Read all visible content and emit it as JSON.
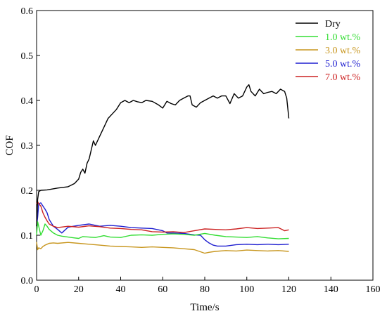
{
  "chart_data": {
    "type": "line",
    "title": "",
    "xlabel": "Time/s",
    "ylabel": "COF",
    "xlim": [
      0,
      160
    ],
    "ylim": [
      0,
      0.6
    ],
    "xticks": [
      0,
      20,
      40,
      60,
      80,
      100,
      120,
      140,
      160
    ],
    "yticks": [
      0.0,
      0.1,
      0.2,
      0.3,
      0.4,
      0.5,
      0.6
    ],
    "xtick_labels": [
      "0",
      "20",
      "40",
      "60",
      "80",
      "100",
      "120",
      "140",
      "160"
    ],
    "ytick_labels": [
      "0.0",
      "0.1",
      "0.2",
      "0.3",
      "0.4",
      "0.5",
      "0.6"
    ],
    "grid": false,
    "legend_position": "top-right",
    "series": [
      {
        "name": "Dry",
        "color": "#000000",
        "x": [
          0,
          0.5,
          1,
          2,
          5,
          10,
          15,
          18,
          20,
          21,
          22,
          23,
          24,
          25,
          26,
          27,
          28,
          30,
          32,
          34,
          36,
          38,
          40,
          42,
          44,
          46,
          48,
          50,
          52,
          55,
          58,
          60,
          62,
          64,
          66,
          68,
          70,
          72,
          73,
          74,
          76,
          78,
          80,
          82,
          84,
          86,
          88,
          90,
          92,
          94,
          96,
          98,
          100,
          101,
          102,
          104,
          106,
          108,
          110,
          112,
          114,
          116,
          118,
          119,
          120
        ],
        "y": [
          0.12,
          0.18,
          0.197,
          0.2,
          0.201,
          0.205,
          0.208,
          0.215,
          0.225,
          0.24,
          0.247,
          0.238,
          0.26,
          0.27,
          0.29,
          0.31,
          0.3,
          0.32,
          0.34,
          0.36,
          0.37,
          0.38,
          0.395,
          0.4,
          0.395,
          0.4,
          0.397,
          0.395,
          0.4,
          0.398,
          0.39,
          0.383,
          0.398,
          0.393,
          0.39,
          0.4,
          0.405,
          0.41,
          0.41,
          0.39,
          0.385,
          0.395,
          0.4,
          0.405,
          0.41,
          0.405,
          0.41,
          0.41,
          0.393,
          0.415,
          0.405,
          0.41,
          0.43,
          0.435,
          0.42,
          0.41,
          0.425,
          0.415,
          0.418,
          0.42,
          0.415,
          0.425,
          0.42,
          0.405,
          0.36
        ]
      },
      {
        "name": "1.0 wt.%",
        "color": "#33dd33",
        "x": [
          0,
          0.5,
          1,
          2,
          3,
          4,
          5,
          6,
          8,
          10,
          12,
          15,
          18,
          20,
          22,
          25,
          28,
          30,
          32,
          35,
          40,
          45,
          50,
          55,
          60,
          65,
          70,
          75,
          80,
          85,
          90,
          95,
          100,
          105,
          110,
          115,
          120
        ],
        "y": [
          0.1,
          0.13,
          0.12,
          0.1,
          0.11,
          0.125,
          0.12,
          0.113,
          0.105,
          0.1,
          0.098,
          0.096,
          0.094,
          0.093,
          0.097,
          0.096,
          0.095,
          0.097,
          0.099,
          0.096,
          0.095,
          0.1,
          0.101,
          0.1,
          0.102,
          0.103,
          0.102,
          0.1,
          0.104,
          0.1,
          0.097,
          0.096,
          0.095,
          0.097,
          0.094,
          0.092,
          0.093
        ]
      },
      {
        "name": "3.0 wt.%",
        "color": "#c8961e",
        "x": [
          0,
          0.5,
          1,
          2,
          3,
          4,
          5,
          6,
          8,
          10,
          15,
          20,
          25,
          30,
          35,
          40,
          45,
          50,
          55,
          60,
          65,
          70,
          75,
          80,
          82,
          85,
          90,
          95,
          100,
          105,
          110,
          115,
          120
        ],
        "y": [
          0.085,
          0.068,
          0.072,
          0.07,
          0.075,
          0.078,
          0.08,
          0.082,
          0.083,
          0.082,
          0.084,
          0.082,
          0.08,
          0.078,
          0.076,
          0.075,
          0.074,
          0.073,
          0.074,
          0.073,
          0.072,
          0.07,
          0.068,
          0.06,
          0.062,
          0.064,
          0.066,
          0.065,
          0.067,
          0.066,
          0.065,
          0.066,
          0.064
        ]
      },
      {
        "name": "5.0 wt.%",
        "color": "#1f1fd0",
        "x": [
          0,
          0.5,
          1,
          2,
          3,
          4,
          5,
          6,
          8,
          10,
          12,
          15,
          20,
          25,
          30,
          35,
          40,
          45,
          50,
          55,
          60,
          62,
          65,
          70,
          75,
          78,
          80,
          82,
          84,
          86,
          90,
          95,
          100,
          105,
          110,
          115,
          120
        ],
        "y": [
          0.12,
          0.14,
          0.17,
          0.172,
          0.165,
          0.158,
          0.15,
          0.135,
          0.12,
          0.113,
          0.105,
          0.118,
          0.122,
          0.125,
          0.12,
          0.122,
          0.12,
          0.117,
          0.116,
          0.115,
          0.11,
          0.105,
          0.105,
          0.104,
          0.101,
          0.1,
          0.09,
          0.083,
          0.078,
          0.076,
          0.076,
          0.079,
          0.08,
          0.079,
          0.08,
          0.079,
          0.08
        ]
      },
      {
        "name": "7.0 wt.%",
        "color": "#cc2222",
        "x": [
          0,
          0.5,
          1,
          2,
          3,
          4,
          5,
          6,
          8,
          10,
          15,
          20,
          25,
          30,
          35,
          40,
          45,
          50,
          55,
          60,
          65,
          70,
          75,
          80,
          85,
          90,
          95,
          100,
          105,
          110,
          115,
          118,
          120
        ],
        "y": [
          0.17,
          0.175,
          0.17,
          0.165,
          0.15,
          0.14,
          0.132,
          0.125,
          0.12,
          0.117,
          0.12,
          0.118,
          0.121,
          0.119,
          0.116,
          0.115,
          0.113,
          0.112,
          0.108,
          0.107,
          0.108,
          0.106,
          0.11,
          0.114,
          0.113,
          0.112,
          0.114,
          0.117,
          0.115,
          0.116,
          0.117,
          0.11,
          0.112
        ]
      }
    ]
  }
}
